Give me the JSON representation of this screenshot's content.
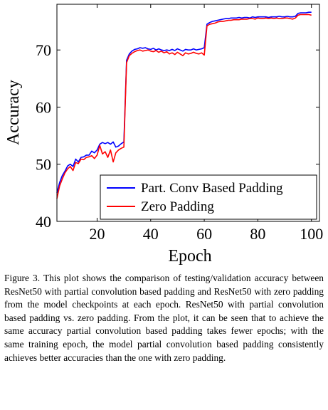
{
  "chart_data": {
    "type": "line",
    "xlabel": "Epoch",
    "ylabel": "Accuracy",
    "xlim": [
      5,
      103
    ],
    "ylim": [
      40,
      78
    ],
    "xticks": [
      20,
      40,
      60,
      80,
      100
    ],
    "yticks": [
      40,
      50,
      60,
      70
    ],
    "grid": false,
    "legend_position": "bottom-right",
    "series": [
      {
        "name": "Part. Conv Based Padding",
        "color": "#0000ff",
        "x": [
          5,
          6,
          7,
          8,
          9,
          10,
          11,
          12,
          13,
          14,
          15,
          16,
          17,
          18,
          19,
          20,
          21,
          22,
          23,
          24,
          25,
          26,
          27,
          28,
          29,
          30,
          31,
          32,
          33,
          34,
          35,
          36,
          37,
          38,
          39,
          40,
          41,
          42,
          43,
          44,
          45,
          46,
          47,
          48,
          49,
          50,
          51,
          52,
          53,
          54,
          55,
          56,
          57,
          58,
          59,
          60,
          61,
          62,
          63,
          64,
          65,
          66,
          67,
          68,
          69,
          70,
          71,
          72,
          73,
          74,
          75,
          76,
          77,
          78,
          79,
          80,
          81,
          82,
          83,
          84,
          85,
          86,
          87,
          88,
          89,
          90,
          91,
          92,
          93,
          94,
          95,
          96,
          97,
          98,
          99,
          100
        ],
        "y": [
          45,
          46.8,
          48,
          48.8,
          49.7,
          50,
          49.6,
          50.9,
          50.4,
          51.2,
          51.3,
          51.6,
          51.6,
          52.3,
          52.0,
          52.5,
          53.5,
          53.8,
          53.6,
          53.8,
          53.5,
          53.9,
          53.0,
          53.2,
          53.6,
          53.9,
          68.2,
          69.3,
          69.8,
          70.1,
          70.2,
          70.4,
          70.3,
          70.4,
          70.2,
          70.1,
          70.3,
          70.0,
          70.2,
          70.0,
          69.9,
          70.0,
          69.9,
          70.1,
          69.9,
          70.2,
          70.0,
          69.8,
          70.1,
          70.0,
          70.0,
          70.2,
          70.0,
          70.1,
          70.2,
          70.4,
          74.5,
          74.8,
          75.0,
          75.1,
          75.2,
          75.3,
          75.4,
          75.5,
          75.5,
          75.6,
          75.6,
          75.6,
          75.7,
          75.6,
          75.7,
          75.7,
          75.6,
          75.8,
          75.7,
          75.8,
          75.8,
          75.8,
          75.8,
          75.7,
          75.8,
          75.8,
          75.8,
          75.9,
          75.8,
          75.8,
          75.9,
          75.8,
          75.8,
          75.9,
          76.4,
          76.5,
          76.5,
          76.5,
          76.6,
          76.6
        ]
      },
      {
        "name": "Zero Padding",
        "color": "#ff0000",
        "x": [
          5,
          6,
          7,
          8,
          9,
          10,
          11,
          12,
          13,
          14,
          15,
          16,
          17,
          18,
          19,
          20,
          21,
          22,
          23,
          24,
          25,
          26,
          27,
          28,
          29,
          30,
          31,
          32,
          33,
          34,
          35,
          36,
          37,
          38,
          39,
          40,
          41,
          42,
          43,
          44,
          45,
          46,
          47,
          48,
          49,
          50,
          51,
          52,
          53,
          54,
          55,
          56,
          57,
          58,
          59,
          60,
          61,
          62,
          63,
          64,
          65,
          66,
          67,
          68,
          69,
          70,
          71,
          72,
          73,
          74,
          75,
          76,
          77,
          78,
          79,
          80,
          81,
          82,
          83,
          84,
          85,
          86,
          87,
          88,
          89,
          90,
          91,
          92,
          93,
          94,
          95,
          96,
          97,
          98,
          99,
          100
        ],
        "y": [
          44,
          46.2,
          47.4,
          48.5,
          49.2,
          49.6,
          48.9,
          50.3,
          50.1,
          50.9,
          50.8,
          51.2,
          51.3,
          51.5,
          51.0,
          51.6,
          53.3,
          51.8,
          52.2,
          51.2,
          52.5,
          50.4,
          52.0,
          52.5,
          52.8,
          53.0,
          67.8,
          69.0,
          69.4,
          69.7,
          69.9,
          70.0,
          69.8,
          69.9,
          70.0,
          69.8,
          69.7,
          69.9,
          69.6,
          69.8,
          69.5,
          69.7,
          69.3,
          69.5,
          69.2,
          69.6,
          69.3,
          69.0,
          69.5,
          69.3,
          69.4,
          69.6,
          69.4,
          69.3,
          69.5,
          69.1,
          74.2,
          74.5,
          74.6,
          74.7,
          74.9,
          75.0,
          75.0,
          75.1,
          75.2,
          75.2,
          75.3,
          75.3,
          75.3,
          75.4,
          75.4,
          75.4,
          75.5,
          75.5,
          75.4,
          75.6,
          75.5,
          75.5,
          75.6,
          75.5,
          75.6,
          75.5,
          75.6,
          75.5,
          75.5,
          75.6,
          75.6,
          75.5,
          75.4,
          75.6,
          76.1,
          76.2,
          76.2,
          76.2,
          76.2,
          76.1
        ]
      }
    ]
  },
  "caption": "Figure 3. This plot shows the comparison of testing/validation accuracy between ResNet50 with partial convolution based padding and ResNet50 with zero padding from the model checkpoints at each epoch. ResNet50 with partial convolution based padding vs. zero padding. From the plot, it can be seen that to achieve the same accuracy partial convolution based padding takes fewer epochs; with the same training epoch, the model partial convolution based padding consistently achieves better accuracies than the one with zero padding."
}
